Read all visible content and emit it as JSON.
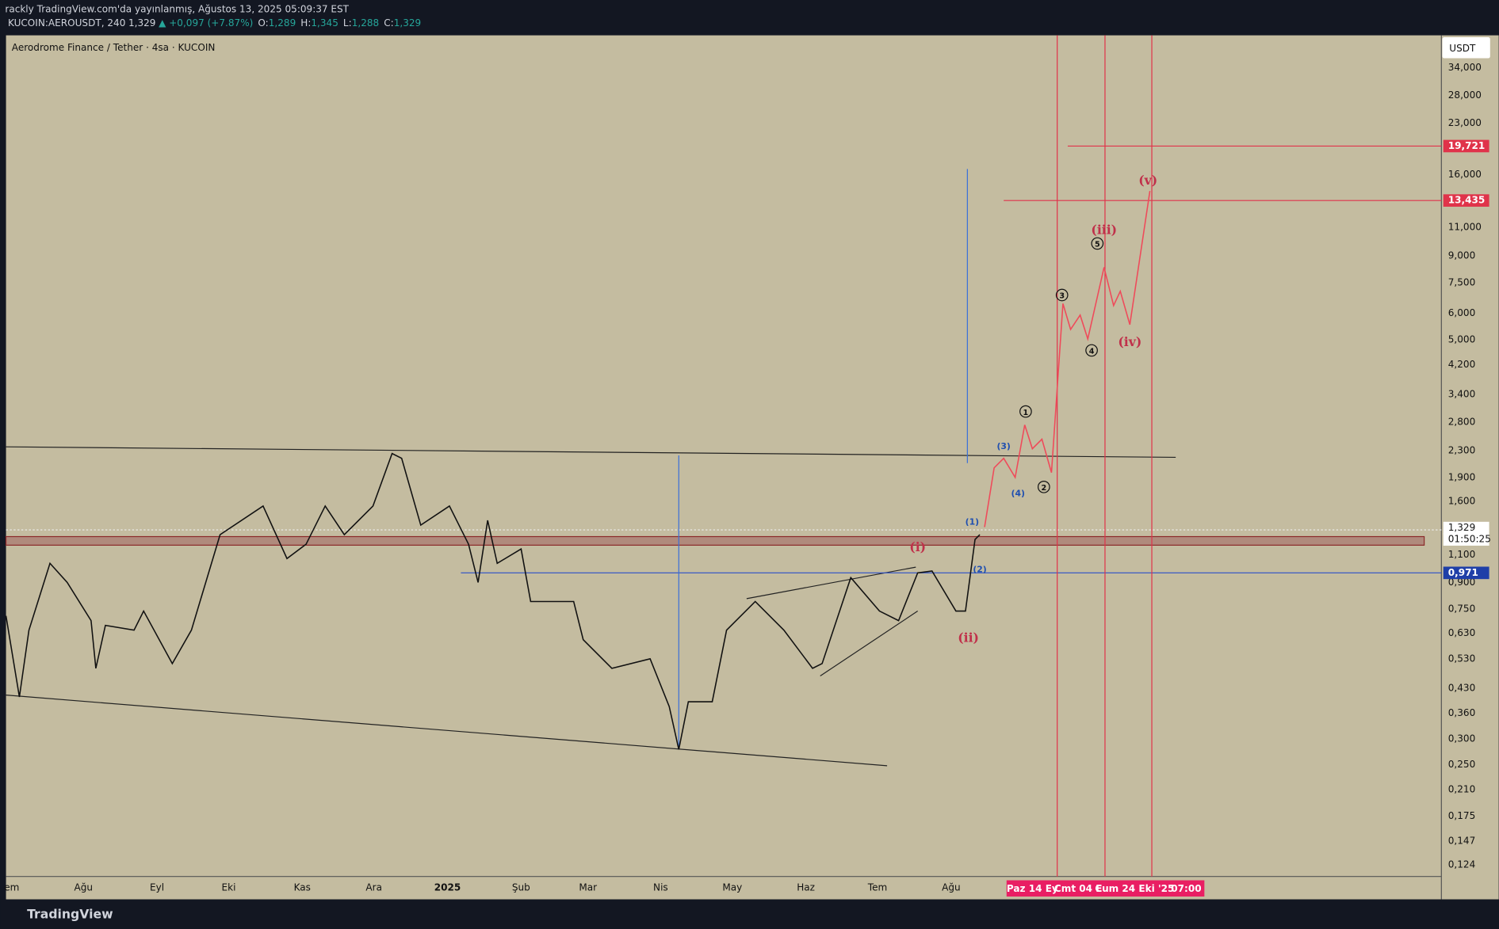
{
  "header": {
    "publisher": "rackly TradingView.com'da yayınlanmış, Ağustos 13, 2025 05:09:37 EST",
    "symbol": "KUCOIN:AEROUSDT, 240",
    "last": "1,329",
    "change": "▲ +0,097 (+7.87%)",
    "ohlc": [
      {
        "key": "O:",
        "value": "1,289"
      },
      {
        "key": "H:",
        "value": "1,345"
      },
      {
        "key": "L:",
        "value": "1,288"
      },
      {
        "key": "C:",
        "value": "1,329"
      }
    ]
  },
  "chart": {
    "title": "Aerodrome Finance / Tether · 4sa · KUCOIN",
    "currency": "USDT",
    "price_labels": [
      "34,000",
      "28,000",
      "23,000",
      "16,000",
      "11,000",
      "9,000",
      "7,500",
      "6,000",
      "5,000",
      "4,200",
      "3,400",
      "2,800",
      "2,300",
      "1,900",
      "1,600",
      "1,100",
      "0,900",
      "0,750",
      "0,630",
      "0,530",
      "0,430",
      "0,360",
      "0,300",
      "0,250",
      "0,210",
      "0,175",
      "0,147",
      "0,124"
    ],
    "price_tags": [
      "19,721",
      "13,435",
      "1,329",
      "01:50:25",
      "0,971"
    ],
    "time_labels": [
      "em",
      "Ağu",
      "Eyl",
      "Eki",
      "Kas",
      "Ara",
      "2025",
      "Şub",
      "Mar",
      "Nis",
      "May",
      "Haz",
      "Tem",
      "Ağu"
    ],
    "time_tags": [
      "Paz 14 Ey",
      "Cmt 04 E",
      "Cum 24 Eki '25",
      "07:00"
    ],
    "wave_labels": [
      "(i)",
      "(ii)",
      "(iii)",
      "(iv)",
      "(v)",
      "(1)",
      "(2)",
      "(3)",
      "(4)",
      "1",
      "2",
      "3",
      "4",
      "5"
    ]
  },
  "footer": {
    "brand": "TradingView"
  }
}
